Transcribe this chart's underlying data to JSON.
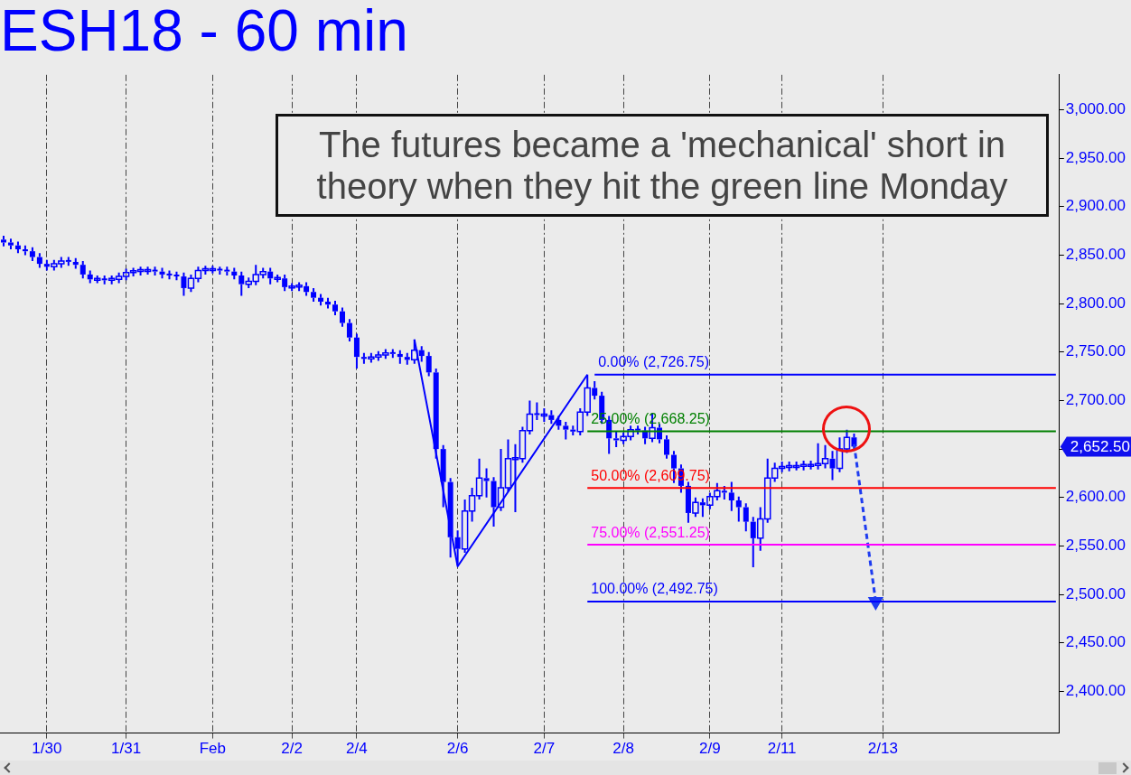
{
  "chart_data": {
    "type": "candlestick",
    "title": "ESH18 - 60 min",
    "categories": [
      null,
      null,
      null,
      null,
      null,
      null,
      "1/30",
      null,
      null,
      null,
      null,
      null,
      null,
      null,
      null,
      null,
      null,
      "1/31",
      null,
      null,
      null,
      null,
      null,
      null,
      null,
      null,
      null,
      null,
      null,
      "Feb",
      null,
      null,
      null,
      null,
      null,
      null,
      null,
      null,
      null,
      null,
      "2/2",
      null,
      null,
      null,
      null,
      null,
      null,
      null,
      null,
      "2/4",
      null,
      null,
      null,
      null,
      null,
      null,
      null,
      null,
      null,
      null,
      null,
      null,
      null,
      "2/6",
      null,
      null,
      null,
      null,
      null,
      null,
      null,
      null,
      null,
      null,
      null,
      "2/7",
      null,
      null,
      null,
      null,
      null,
      null,
      null,
      null,
      null,
      null,
      "2/8",
      null,
      null,
      null,
      null,
      null,
      null,
      null,
      null,
      null,
      null,
      null,
      "2/9",
      null,
      null,
      null,
      null,
      null,
      null,
      null,
      null,
      null,
      "2/11",
      null,
      null,
      null,
      null,
      null,
      null,
      null,
      null,
      null,
      null,
      null,
      null,
      null,
      "2/13",
      null,
      null,
      null,
      null,
      null,
      null,
      null,
      null,
      null,
      null,
      null,
      null,
      null,
      null,
      null,
      null,
      null,
      null,
      null,
      null,
      null,
      null,
      null,
      null
    ],
    "ylim": [
      2357,
      3036
    ],
    "yticks": [
      {
        "value": 2400,
        "label": "2,400.00"
      },
      {
        "value": 2450,
        "label": "2,450.00"
      },
      {
        "value": 2500,
        "label": "2,500.00"
      },
      {
        "value": 2550,
        "label": "2,550.00"
      },
      {
        "value": 2600,
        "label": "2,600.00"
      },
      {
        "value": 2650,
        "label": null
      },
      {
        "value": 2700,
        "label": "2,700.00"
      },
      {
        "value": 2750,
        "label": "2,750.00"
      },
      {
        "value": 2800,
        "label": "2,800.00"
      },
      {
        "value": 2850,
        "label": "2,850.00"
      },
      {
        "value": 2900,
        "label": "2,900.00"
      },
      {
        "value": 2950,
        "label": "2,950.00"
      },
      {
        "value": 3000,
        "label": "3,000.00"
      }
    ],
    "grid": "x",
    "annotations": [
      "The futures became a 'mechanical' short in theory when they hit the green line Monday",
      "2,652.50"
    ],
    "series": [
      {
        "color": "#0000ff",
        "ohlc": [
          [
            2866,
            2870,
            2859,
            2863
          ],
          [
            2863,
            2867,
            2856,
            2860
          ],
          [
            2860,
            2864,
            2852,
            2856
          ],
          [
            2856,
            2860,
            2850,
            2854
          ],
          [
            2854,
            2858,
            2844,
            2848
          ],
          [
            2848,
            2852,
            2837,
            2841
          ],
          [
            2841,
            2845,
            2834,
            2838
          ],
          [
            2838,
            2845,
            2834,
            2841
          ],
          [
            2841,
            2848,
            2837,
            2844
          ],
          [
            2844,
            2848,
            2839,
            2843
          ],
          [
            2843,
            2847,
            2836,
            2840
          ],
          [
            2840,
            2844,
            2826,
            2830
          ],
          [
            2830,
            2834,
            2821,
            2825
          ],
          [
            2825,
            2829,
            2821,
            2825
          ],
          [
            2825,
            2829,
            2820,
            2824
          ],
          [
            2824,
            2829,
            2820,
            2825
          ],
          [
            2825,
            2832,
            2821,
            2828
          ],
          [
            2828,
            2836,
            2824,
            2832
          ],
          [
            2832,
            2837,
            2828,
            2833
          ],
          [
            2833,
            2838,
            2829,
            2834
          ],
          [
            2834,
            2838,
            2830,
            2834
          ],
          [
            2834,
            2838,
            2829,
            2833
          ],
          [
            2833,
            2837,
            2826,
            2830
          ],
          [
            2830,
            2834,
            2825,
            2829
          ],
          [
            2829,
            2833,
            2824,
            2828
          ],
          [
            2828,
            2832,
            2808,
            2816
          ],
          [
            2816,
            2830,
            2812,
            2826
          ],
          [
            2826,
            2838,
            2822,
            2834
          ],
          [
            2834,
            2839,
            2830,
            2835
          ],
          [
            2835,
            2839,
            2831,
            2835
          ],
          [
            2835,
            2838,
            2830,
            2834
          ],
          [
            2834,
            2838,
            2829,
            2833
          ],
          [
            2833,
            2837,
            2825,
            2829
          ],
          [
            2829,
            2833,
            2808,
            2820
          ],
          [
            2820,
            2827,
            2816,
            2823
          ],
          [
            2823,
            2840,
            2819,
            2830
          ],
          [
            2830,
            2837,
            2826,
            2833
          ],
          [
            2833,
            2837,
            2820,
            2826
          ],
          [
            2826,
            2830,
            2822,
            2826
          ],
          [
            2826,
            2830,
            2813,
            2817
          ],
          [
            2817,
            2821,
            2813,
            2817
          ],
          [
            2817,
            2822,
            2813,
            2818
          ],
          [
            2818,
            2822,
            2808,
            2812
          ],
          [
            2812,
            2816,
            2802,
            2806
          ],
          [
            2806,
            2810,
            2798,
            2802
          ],
          [
            2802,
            2806,
            2795,
            2799
          ],
          [
            2799,
            2803,
            2788,
            2792
          ],
          [
            2792,
            2796,
            2776,
            2780
          ],
          [
            2780,
            2784,
            2761,
            2765
          ],
          [
            2765,
            2769,
            2733,
            2745
          ],
          [
            2745,
            2749,
            2738,
            2743
          ],
          [
            2743,
            2749,
            2739,
            2745
          ],
          [
            2745,
            2751,
            2741,
            2747
          ],
          [
            2747,
            2753,
            2743,
            2749
          ],
          [
            2749,
            2753,
            2744,
            2748
          ],
          [
            2748,
            2752,
            2738,
            2745
          ],
          [
            2745,
            2749,
            2737,
            2742
          ],
          [
            2742,
            2763,
            2738,
            2752
          ],
          [
            2752,
            2756,
            2740,
            2746
          ],
          [
            2746,
            2750,
            2725,
            2729
          ],
          [
            2729,
            2733,
            2640,
            2650
          ],
          [
            2650,
            2654,
            2590,
            2616
          ],
          [
            2616,
            2620,
            2538,
            2559
          ],
          [
            2559,
            2566,
            2530,
            2547
          ],
          [
            2547,
            2598,
            2543,
            2586
          ],
          [
            2586,
            2610,
            2575,
            2602
          ],
          [
            2602,
            2640,
            2598,
            2620
          ],
          [
            2620,
            2630,
            2600,
            2617
          ],
          [
            2617,
            2621,
            2570,
            2590
          ],
          [
            2590,
            2650,
            2586,
            2610
          ],
          [
            2610,
            2660,
            2606,
            2640
          ],
          [
            2640,
            2655,
            2585,
            2640
          ],
          [
            2640,
            2673,
            2636,
            2669
          ],
          [
            2669,
            2700,
            2665,
            2686
          ],
          [
            2686,
            2698,
            2680,
            2685
          ],
          [
            2685,
            2692,
            2678,
            2685
          ],
          [
            2685,
            2690,
            2676,
            2680
          ],
          [
            2680,
            2684,
            2670,
            2674
          ],
          [
            2674,
            2678,
            2660,
            2670
          ],
          [
            2670,
            2674,
            2664,
            2668
          ],
          [
            2668,
            2692,
            2664,
            2688
          ],
          [
            2688,
            2726.75,
            2684,
            2713
          ],
          [
            2713,
            2720,
            2701,
            2705
          ],
          [
            2705,
            2709,
            2676,
            2680
          ],
          [
            2680,
            2684,
            2645,
            2661
          ],
          [
            2661,
            2668,
            2652,
            2659
          ],
          [
            2659,
            2667,
            2655,
            2663
          ],
          [
            2663,
            2674,
            2659,
            2670
          ],
          [
            2670,
            2674,
            2665,
            2669
          ],
          [
            2669,
            2673,
            2655,
            2661
          ],
          [
            2661,
            2687,
            2657,
            2672
          ],
          [
            2672,
            2676,
            2656,
            2660
          ],
          [
            2660,
            2664,
            2640,
            2644
          ],
          [
            2644,
            2648,
            2615,
            2630
          ],
          [
            2630,
            2634,
            2605,
            2612
          ],
          [
            2612,
            2616,
            2574,
            2584
          ],
          [
            2584,
            2600,
            2580,
            2595
          ],
          [
            2595,
            2599,
            2580,
            2592
          ],
          [
            2592,
            2605,
            2588,
            2601
          ],
          [
            2601,
            2615,
            2597,
            2607
          ],
          [
            2607,
            2612,
            2598,
            2605
          ],
          [
            2605,
            2616,
            2586,
            2597
          ],
          [
            2597,
            2601,
            2575,
            2590
          ],
          [
            2590,
            2594,
            2565,
            2575
          ],
          [
            2575,
            2580,
            2528,
            2558
          ],
          [
            2558,
            2590,
            2545,
            2578
          ],
          [
            2578,
            2640,
            2574,
            2620
          ],
          [
            2620,
            2636,
            2616,
            2630
          ],
          [
            2630,
            2637,
            2626,
            2631
          ],
          [
            2631,
            2637,
            2627,
            2632
          ],
          [
            2632,
            2637,
            2628,
            2632
          ],
          [
            2632,
            2638,
            2628,
            2633
          ],
          [
            2633,
            2638,
            2629,
            2633
          ],
          [
            2633,
            2656,
            2629,
            2635
          ],
          [
            2635,
            2654,
            2630,
            2640
          ],
          [
            2640,
            2648,
            2618,
            2630
          ],
          [
            2630,
            2662,
            2626,
            2650
          ],
          [
            2650,
            2670,
            2646,
            2662
          ],
          [
            2662,
            2666,
            2648,
            2652.5
          ],
          null,
          null,
          null,
          null,
          null,
          null,
          null,
          null,
          null,
          null,
          null,
          null,
          null,
          null,
          null,
          null,
          null,
          null,
          null,
          null,
          null,
          null,
          null,
          null,
          null,
          null,
          null,
          null
        ]
      },
      {
        "type": "line",
        "color": "#0000ff",
        "values": [
          null,
          null,
          null,
          null,
          null,
          null,
          null,
          null,
          null,
          null,
          null,
          null,
          null,
          null,
          null,
          null,
          null,
          null,
          null,
          null,
          null,
          null,
          null,
          null,
          null,
          null,
          null,
          null,
          null,
          null,
          null,
          null,
          null,
          null,
          null,
          null,
          null,
          null,
          null,
          null,
          null,
          null,
          null,
          null,
          null,
          null,
          null,
          null,
          null,
          null,
          null,
          null,
          null,
          null,
          null,
          null,
          null,
          2763,
          null,
          null,
          null,
          null,
          null,
          2529,
          null,
          null,
          null,
          null,
          null,
          null,
          null,
          null,
          null,
          null,
          null,
          null,
          null,
          null,
          null,
          null,
          null,
          2726.75,
          null,
          null,
          null,
          null,
          null,
          null,
          null,
          null,
          null,
          null,
          null,
          null,
          null,
          null,
          null,
          null,
          null,
          null,
          null,
          null,
          null,
          null,
          null,
          null,
          null,
          null,
          null,
          null,
          null,
          null,
          null,
          null,
          null,
          null,
          null,
          null,
          null,
          null,
          null,
          null,
          null,
          null,
          null,
          null,
          null,
          null,
          null,
          null,
          null,
          null,
          null,
          null,
          null,
          null,
          null,
          null,
          null,
          null,
          null,
          null,
          null,
          null,
          null,
          null,
          null
        ]
      },
      {
        "type": "line",
        "name": "0.00% (2,726.75)",
        "color": "#0000ff",
        "values": [
          null,
          null,
          null,
          null,
          null,
          null,
          null,
          null,
          null,
          null,
          null,
          null,
          null,
          null,
          null,
          null,
          null,
          null,
          null,
          null,
          null,
          null,
          null,
          null,
          null,
          null,
          null,
          null,
          null,
          null,
          null,
          null,
          null,
          null,
          null,
          null,
          null,
          null,
          null,
          null,
          null,
          null,
          null,
          null,
          null,
          null,
          null,
          null,
          null,
          null,
          null,
          null,
          null,
          null,
          null,
          null,
          null,
          null,
          null,
          null,
          null,
          null,
          null,
          null,
          null,
          null,
          null,
          null,
          null,
          null,
          null,
          null,
          null,
          null,
          null,
          null,
          null,
          null,
          null,
          null,
          null,
          null,
          2726.75,
          2726.75,
          2726.75,
          2726.75,
          2726.75,
          2726.75,
          2726.75,
          2726.75,
          2726.75,
          2726.75,
          2726.75,
          2726.75,
          2726.75,
          2726.75,
          2726.75,
          2726.75,
          2726.75,
          2726.75,
          2726.75,
          2726.75,
          2726.75,
          2726.75,
          2726.75,
          2726.75,
          2726.75,
          2726.75,
          2726.75,
          2726.75,
          2726.75,
          2726.75,
          2726.75,
          2726.75,
          2726.75,
          2726.75,
          2726.75,
          2726.75,
          2726.75,
          2726.75,
          2726.75,
          2726.75,
          2726.75,
          2726.75,
          2726.75,
          2726.75,
          2726.75,
          2726.75,
          2726.75,
          2726.75,
          2726.75,
          2726.75,
          2726.75,
          2726.75,
          2726.75,
          2726.75,
          2726.75,
          2726.75,
          2726.75,
          2726.75,
          2726.75,
          2726.75,
          2726.75,
          2726.75,
          2726.75,
          2726.75,
          2726.75
        ]
      },
      {
        "type": "line",
        "name": "25.00% (2,668.25)",
        "color": "#008000",
        "values": [
          null,
          null,
          null,
          null,
          null,
          null,
          null,
          null,
          null,
          null,
          null,
          null,
          null,
          null,
          null,
          null,
          null,
          null,
          null,
          null,
          null,
          null,
          null,
          null,
          null,
          null,
          null,
          null,
          null,
          null,
          null,
          null,
          null,
          null,
          null,
          null,
          null,
          null,
          null,
          null,
          null,
          null,
          null,
          null,
          null,
          null,
          null,
          null,
          null,
          null,
          null,
          null,
          null,
          null,
          null,
          null,
          null,
          null,
          null,
          null,
          null,
          null,
          null,
          null,
          null,
          null,
          null,
          null,
          null,
          null,
          null,
          null,
          null,
          null,
          null,
          null,
          null,
          null,
          null,
          null,
          null,
          2668.25,
          2668.25,
          2668.25,
          2668.25,
          2668.25,
          2668.25,
          2668.25,
          2668.25,
          2668.25,
          2668.25,
          2668.25,
          2668.25,
          2668.25,
          2668.25,
          2668.25,
          2668.25,
          2668.25,
          2668.25,
          2668.25,
          2668.25,
          2668.25,
          2668.25,
          2668.25,
          2668.25,
          2668.25,
          2668.25,
          2668.25,
          2668.25,
          2668.25,
          2668.25,
          2668.25,
          2668.25,
          2668.25,
          2668.25,
          2668.25,
          2668.25,
          2668.25,
          2668.25,
          2668.25,
          2668.25,
          2668.25,
          2668.25,
          2668.25,
          2668.25,
          2668.25,
          2668.25,
          2668.25,
          2668.25,
          2668.25,
          2668.25,
          2668.25,
          2668.25,
          2668.25,
          2668.25,
          2668.25,
          2668.25,
          2668.25,
          2668.25,
          2668.25,
          2668.25,
          2668.25,
          2668.25,
          2668.25,
          2668.25,
          2668.25,
          2668.25
        ]
      },
      {
        "type": "line",
        "name": "50.00% (2,609.75)",
        "color": "#ff0000",
        "values": [
          null,
          null,
          null,
          null,
          null,
          null,
          null,
          null,
          null,
          null,
          null,
          null,
          null,
          null,
          null,
          null,
          null,
          null,
          null,
          null,
          null,
          null,
          null,
          null,
          null,
          null,
          null,
          null,
          null,
          null,
          null,
          null,
          null,
          null,
          null,
          null,
          null,
          null,
          null,
          null,
          null,
          null,
          null,
          null,
          null,
          null,
          null,
          null,
          null,
          null,
          null,
          null,
          null,
          null,
          null,
          null,
          null,
          null,
          null,
          null,
          null,
          null,
          null,
          null,
          null,
          null,
          null,
          null,
          null,
          null,
          null,
          null,
          null,
          null,
          null,
          null,
          null,
          null,
          null,
          null,
          null,
          2609.75,
          2609.75,
          2609.75,
          2609.75,
          2609.75,
          2609.75,
          2609.75,
          2609.75,
          2609.75,
          2609.75,
          2609.75,
          2609.75,
          2609.75,
          2609.75,
          2609.75,
          2609.75,
          2609.75,
          2609.75,
          2609.75,
          2609.75,
          2609.75,
          2609.75,
          2609.75,
          2609.75,
          2609.75,
          2609.75,
          2609.75,
          2609.75,
          2609.75,
          2609.75,
          2609.75,
          2609.75,
          2609.75,
          2609.75,
          2609.75,
          2609.75,
          2609.75,
          2609.75,
          2609.75,
          2609.75,
          2609.75,
          2609.75,
          2609.75,
          2609.75,
          2609.75,
          2609.75,
          2609.75,
          2609.75,
          2609.75,
          2609.75,
          2609.75,
          2609.75,
          2609.75,
          2609.75,
          2609.75,
          2609.75,
          2609.75,
          2609.75,
          2609.75,
          2609.75,
          2609.75,
          2609.75,
          2609.75,
          2609.75,
          2609.75,
          2609.75
        ]
      },
      {
        "type": "line",
        "name": "75.00% (2,551.25)",
        "color": "#ff00ff",
        "values": [
          null,
          null,
          null,
          null,
          null,
          null,
          null,
          null,
          null,
          null,
          null,
          null,
          null,
          null,
          null,
          null,
          null,
          null,
          null,
          null,
          null,
          null,
          null,
          null,
          null,
          null,
          null,
          null,
          null,
          null,
          null,
          null,
          null,
          null,
          null,
          null,
          null,
          null,
          null,
          null,
          null,
          null,
          null,
          null,
          null,
          null,
          null,
          null,
          null,
          null,
          null,
          null,
          null,
          null,
          null,
          null,
          null,
          null,
          null,
          null,
          null,
          null,
          null,
          null,
          null,
          null,
          null,
          null,
          null,
          null,
          null,
          null,
          null,
          null,
          null,
          null,
          null,
          null,
          null,
          null,
          null,
          2551.25,
          2551.25,
          2551.25,
          2551.25,
          2551.25,
          2551.25,
          2551.25,
          2551.25,
          2551.25,
          2551.25,
          2551.25,
          2551.25,
          2551.25,
          2551.25,
          2551.25,
          2551.25,
          2551.25,
          2551.25,
          2551.25,
          2551.25,
          2551.25,
          2551.25,
          2551.25,
          2551.25,
          2551.25,
          2551.25,
          2551.25,
          2551.25,
          2551.25,
          2551.25,
          2551.25,
          2551.25,
          2551.25,
          2551.25,
          2551.25,
          2551.25,
          2551.25,
          2551.25,
          2551.25,
          2551.25,
          2551.25,
          2551.25,
          2551.25,
          2551.25,
          2551.25,
          2551.25,
          2551.25,
          2551.25,
          2551.25,
          2551.25,
          2551.25,
          2551.25,
          2551.25,
          2551.25,
          2551.25,
          2551.25,
          2551.25,
          2551.25,
          2551.25,
          2551.25,
          2551.25,
          2551.25,
          2551.25,
          2551.25,
          2551.25,
          2551.25
        ]
      },
      {
        "type": "line",
        "name": "100.00% (2,492.75)",
        "color": "#0000ff",
        "values": [
          null,
          null,
          null,
          null,
          null,
          null,
          null,
          null,
          null,
          null,
          null,
          null,
          null,
          null,
          null,
          null,
          null,
          null,
          null,
          null,
          null,
          null,
          null,
          null,
          null,
          null,
          null,
          null,
          null,
          null,
          null,
          null,
          null,
          null,
          null,
          null,
          null,
          null,
          null,
          null,
          null,
          null,
          null,
          null,
          null,
          null,
          null,
          null,
          null,
          null,
          null,
          null,
          null,
          null,
          null,
          null,
          null,
          null,
          null,
          null,
          null,
          null,
          null,
          null,
          null,
          null,
          null,
          null,
          null,
          null,
          null,
          null,
          null,
          null,
          null,
          null,
          null,
          null,
          null,
          null,
          null,
          2492.75,
          2492.75,
          2492.75,
          2492.75,
          2492.75,
          2492.75,
          2492.75,
          2492.75,
          2492.75,
          2492.75,
          2492.75,
          2492.75,
          2492.75,
          2492.75,
          2492.75,
          2492.75,
          2492.75,
          2492.75,
          2492.75,
          2492.75,
          2492.75,
          2492.75,
          2492.75,
          2492.75,
          2492.75,
          2492.75,
          2492.75,
          2492.75,
          2492.75,
          2492.75,
          2492.75,
          2492.75,
          2492.75,
          2492.75,
          2492.75,
          2492.75,
          2492.75,
          2492.75,
          2492.75,
          2492.75,
          2492.75,
          2492.75,
          2492.75,
          2492.75,
          2492.75,
          2492.75,
          2492.75,
          2492.75,
          2492.75,
          2492.75,
          2492.75,
          2492.75,
          2492.75,
          2492.75,
          2492.75,
          2492.75,
          2492.75,
          2492.75,
          2492.75,
          2492.75,
          2492.75,
          2492.75,
          2492.75,
          2492.75,
          2492.75,
          2492.75
        ]
      },
      {
        "type": "line",
        "color": "#1e3cf0",
        "line_style": "dashed",
        "marker": "triangle",
        "values": [
          null,
          null,
          null,
          null,
          null,
          null,
          null,
          null,
          null,
          null,
          null,
          null,
          null,
          null,
          null,
          null,
          null,
          null,
          null,
          null,
          null,
          null,
          null,
          null,
          null,
          null,
          null,
          null,
          null,
          null,
          null,
          null,
          null,
          null,
          null,
          null,
          null,
          null,
          null,
          null,
          null,
          null,
          null,
          null,
          null,
          null,
          null,
          null,
          null,
          null,
          null,
          null,
          null,
          null,
          null,
          null,
          null,
          null,
          null,
          null,
          null,
          null,
          null,
          null,
          null,
          null,
          null,
          null,
          null,
          null,
          null,
          null,
          null,
          null,
          null,
          null,
          null,
          null,
          null,
          null,
          null,
          null,
          null,
          null,
          null,
          null,
          null,
          null,
          null,
          null,
          null,
          null,
          null,
          null,
          null,
          null,
          null,
          null,
          null,
          null,
          null,
          null,
          null,
          null,
          null,
          null,
          null,
          null,
          null,
          null,
          null,
          null,
          null,
          null,
          null,
          null,
          null,
          null,
          2655,
          null,
          null,
          2492.75,
          null,
          null,
          null,
          null,
          null,
          null,
          null,
          null,
          null,
          null,
          null,
          null,
          null,
          null,
          null,
          null,
          null,
          null,
          null,
          null,
          null,
          null,
          null,
          null,
          null
        ]
      }
    ]
  }
}
